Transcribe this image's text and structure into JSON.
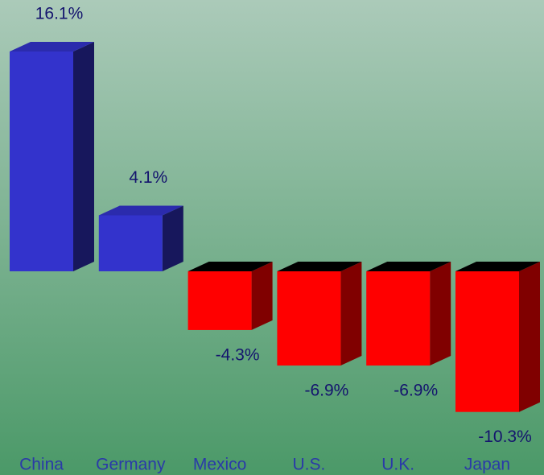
{
  "chart_data": {
    "type": "bar3d",
    "categories": [
      "China",
      "Germany",
      "Mexico",
      "U.S.",
      "U.K.",
      "Japan"
    ],
    "values": [
      16.1,
      4.1,
      -4.3,
      -6.9,
      -6.9,
      -10.3
    ],
    "value_labels": [
      "16.1%",
      "4.1%",
      "-4.3%",
      "-6.9%",
      "-6.9%",
      "-10.3%"
    ],
    "colors": [
      "#3333cc",
      "#3333cc",
      "#ff0000",
      "#ff0000",
      "#ff0000",
      "#ff0000"
    ]
  }
}
